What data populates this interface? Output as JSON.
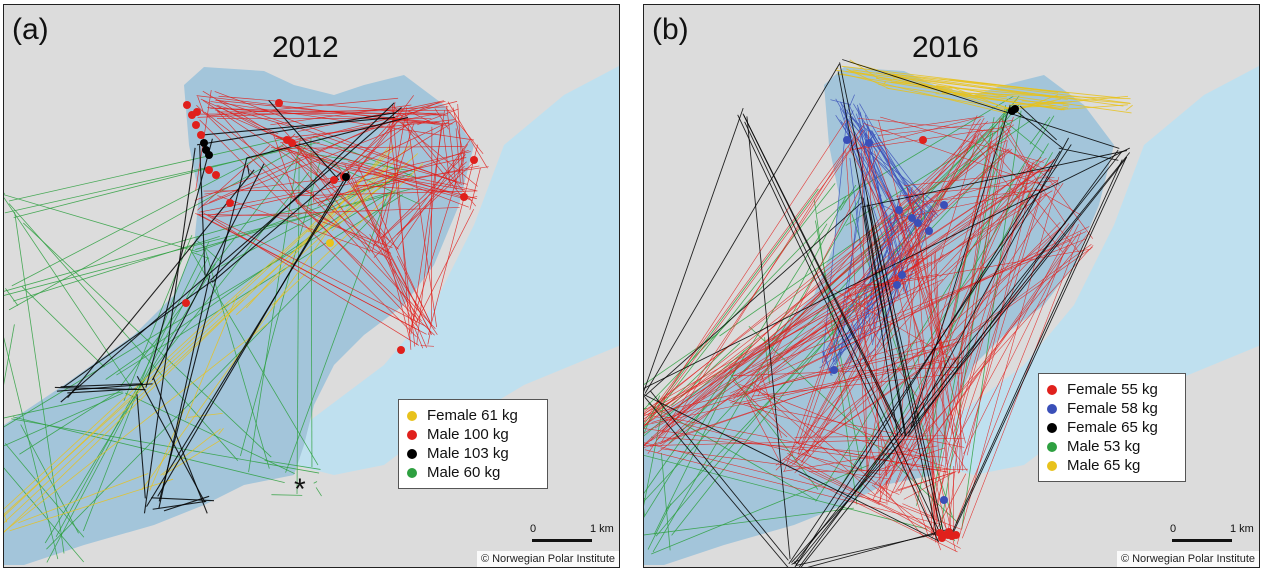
{
  "colors": {
    "land": "#dcdcdc",
    "water": "#a3c5da",
    "sea": "#bfe0ef",
    "female_61": "#e8c21c",
    "male_100": "#e0201c",
    "male_103": "#000000",
    "male_60": "#2ea040",
    "female_55": "#e0201c",
    "female_58": "#3a4fb8",
    "female_65": "#000000",
    "male_53": "#2ea040",
    "male_65": "#e8c21c"
  },
  "panel_a": {
    "label": "(a)",
    "year": "2012",
    "legend": [
      {
        "label": "Female 61 kg",
        "color": "#e8c21c"
      },
      {
        "label": "Male 100 kg",
        "color": "#e0201c"
      },
      {
        "label": "Male 103 kg",
        "color": "#000000"
      },
      {
        "label": "Male 60 kg",
        "color": "#2ea040"
      }
    ],
    "asterisk": "*",
    "scale_zero": "0",
    "scale_km": "1 km",
    "copyright": "© Norwegian Polar Institute"
  },
  "panel_b": {
    "label": "(b)",
    "year": "2016",
    "legend": [
      {
        "label": "Female 55 kg",
        "color": "#e0201c"
      },
      {
        "label": "Female 58 kg",
        "color": "#3a4fb8"
      },
      {
        "label": "Female 65 kg",
        "color": "#000000"
      },
      {
        "label": "Male 53 kg",
        "color": "#2ea040"
      },
      {
        "label": "Male 65 kg",
        "color": "#e8c21c"
      }
    ],
    "scale_zero": "0",
    "scale_km": "1 km",
    "copyright": "© Norwegian Polar Institute"
  }
}
